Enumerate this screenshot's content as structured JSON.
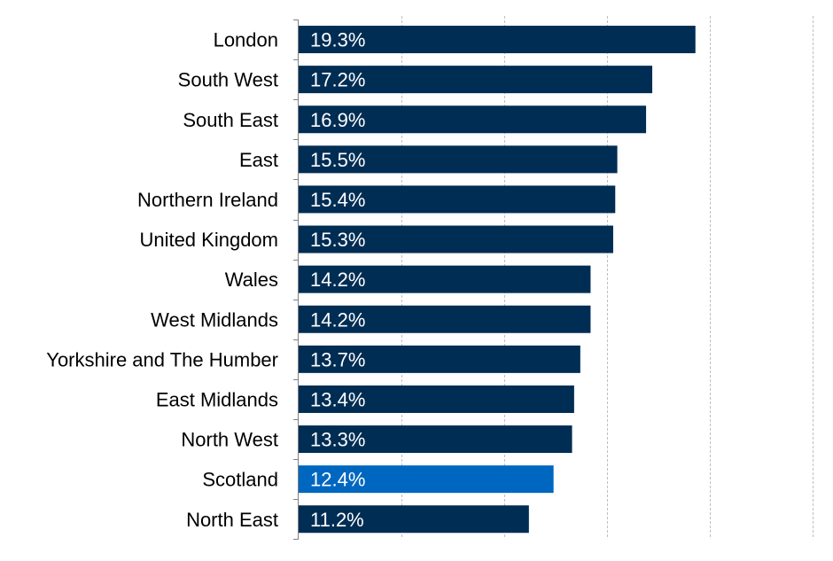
{
  "chart_data": {
    "type": "bar",
    "orientation": "horizontal",
    "categories": [
      "London",
      "South West",
      "South East",
      "East",
      "Northern Ireland",
      "United Kingdom",
      "Wales",
      "West Midlands",
      "Yorkshire and The Humber",
      "East Midlands",
      "North West",
      "Scotland",
      "North East"
    ],
    "values": [
      19.3,
      17.2,
      16.9,
      15.5,
      15.4,
      15.3,
      14.2,
      14.2,
      13.7,
      13.4,
      13.3,
      12.4,
      11.2
    ],
    "value_labels": [
      "19.3%",
      "17.2%",
      "16.9%",
      "15.5%",
      "15.4%",
      "15.3%",
      "14.2%",
      "14.2%",
      "13.7%",
      "13.4%",
      "13.3%",
      "12.4%",
      "11.2%"
    ],
    "highlight_category": "Scotland",
    "xlim": [
      0,
      25
    ],
    "x_gridlines": [
      5,
      10,
      15,
      20,
      25
    ],
    "grid": "vertical dashed",
    "title": "",
    "xlabel": "",
    "ylabel": ""
  },
  "colors": {
    "bar": "#002d54",
    "highlight": "#0067c0",
    "value_text": "#ffffff",
    "category_text": "#000000",
    "grid": "#bfbfbf",
    "axis": "#7f7f7f"
  }
}
